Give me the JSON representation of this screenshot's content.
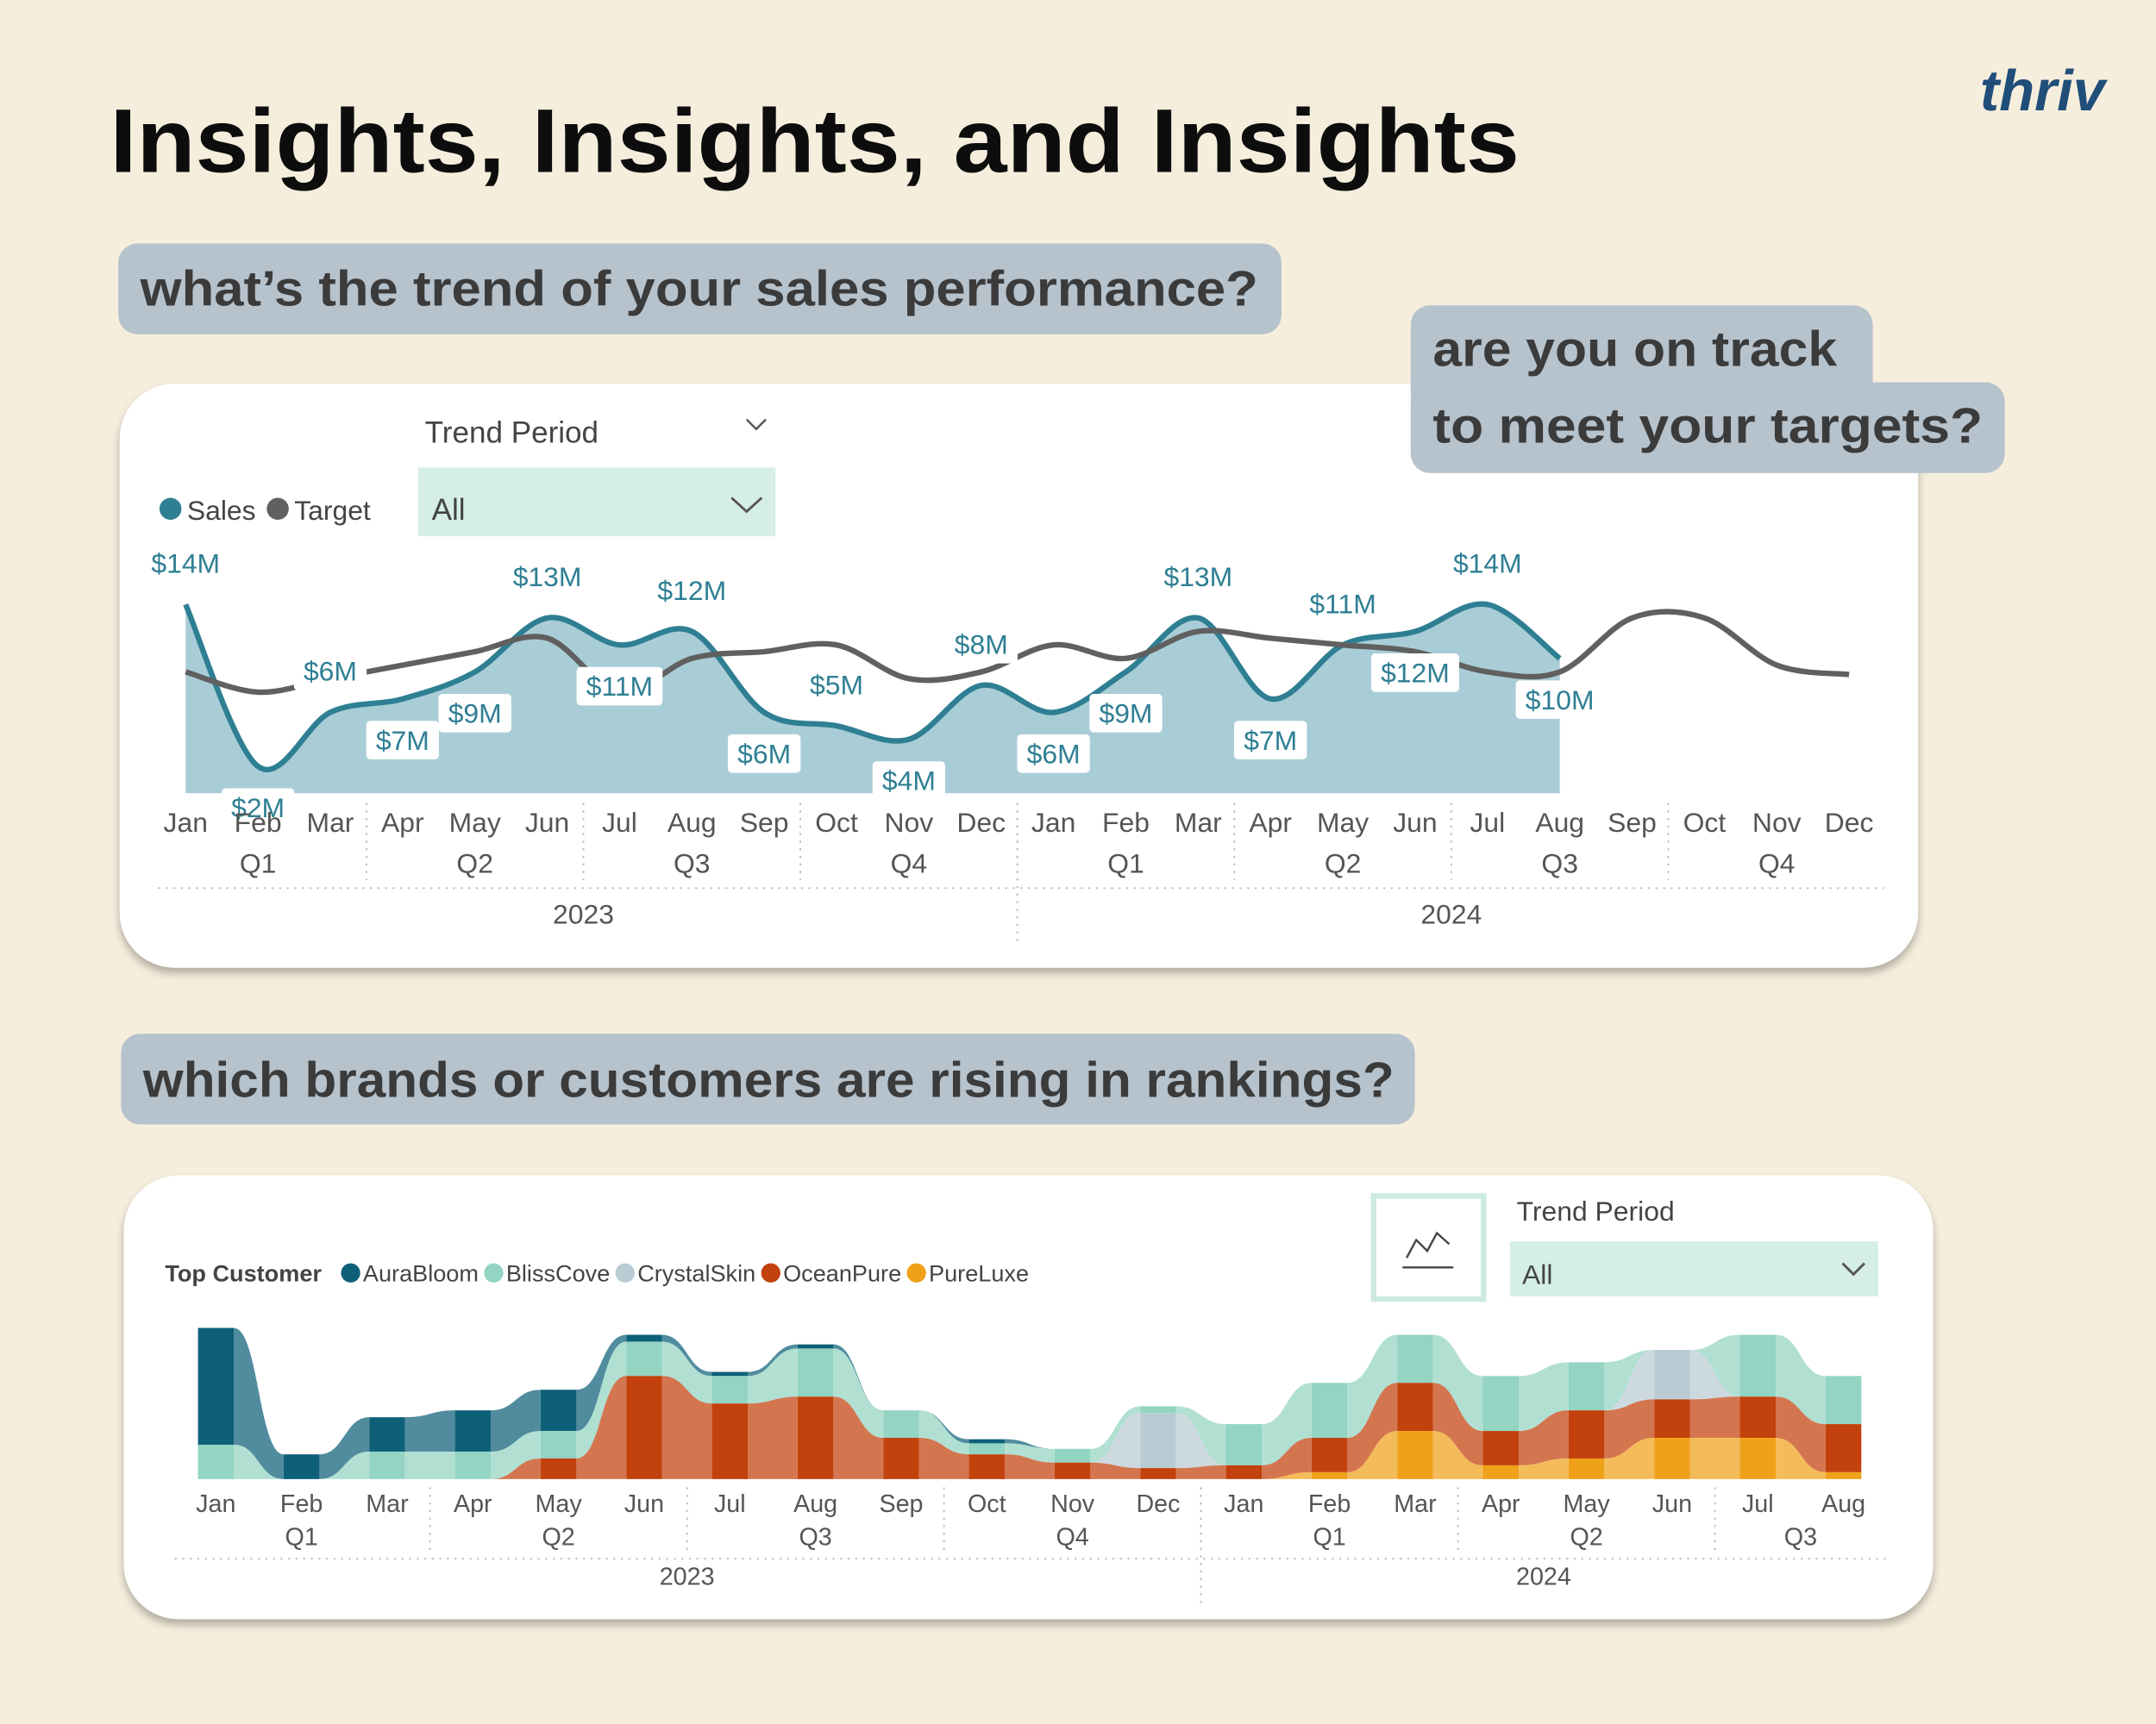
{
  "header": {
    "title": "Insights, Insights, and Insights",
    "logo": "thriv"
  },
  "questions": [
    [
      "what’s the trend of your sales performance?"
    ],
    [
      "are you on track",
      "to meet your targets?"
    ],
    [
      "which brands or customers are rising in rankings?"
    ]
  ],
  "chart_data": [
    {
      "type": "area",
      "filter": {
        "label": "Trend Period",
        "value": "All"
      },
      "categories": [
        "Jan",
        "Feb",
        "Mar",
        "Apr",
        "May",
        "Jun",
        "Jul",
        "Aug",
        "Sep",
        "Oct",
        "Nov",
        "Dec",
        "Jan",
        "Feb",
        "Mar",
        "Apr",
        "May",
        "Jun",
        "Jul",
        "Aug",
        "Sep",
        "Oct",
        "Nov",
        "Dec"
      ],
      "quarters": [
        "Q1",
        "Q2",
        "Q3",
        "Q4",
        "Q1",
        "Q2",
        "Q3",
        "Q4"
      ],
      "years": [
        "2023",
        "2024"
      ],
      "ylim": [
        0,
        16
      ],
      "series": [
        {
          "name": "Sales",
          "type": "area",
          "color": "#2f7f93",
          "fill": "#a9cdd6",
          "values": [
            14,
            2,
            6,
            7,
            9,
            13,
            11,
            12,
            6,
            5,
            4,
            8,
            6,
            9,
            13,
            7,
            11,
            12,
            14,
            10,
            null,
            null,
            null,
            null
          ],
          "value_labels": [
            "$14M",
            "$2M",
            "$6M",
            "$7M",
            "$9M",
            "$13M",
            "$11M",
            "$12M",
            "$6M",
            "$5M",
            "$4M",
            "$8M",
            "$6M",
            "$9M",
            "$13M",
            "$7M",
            "$11M",
            "$12M",
            "$14M",
            "$10M",
            null,
            null,
            null,
            null
          ]
        },
        {
          "name": "Target",
          "type": "line",
          "color": "#606060",
          "values": [
            9,
            7.5,
            8.5,
            9.5,
            10.5,
            11.5,
            7.5,
            10,
            10.5,
            11,
            8.5,
            9,
            11,
            10,
            12,
            11.5,
            11,
            10.5,
            9,
            9,
            13,
            13,
            9.5,
            8.8
          ]
        }
      ]
    },
    {
      "type": "ribbon",
      "legend_title": "Top Customer",
      "filter": {
        "label": "Trend Period",
        "value": "All"
      },
      "categories": [
        "Jan",
        "Feb",
        "Mar",
        "Apr",
        "May",
        "Jun",
        "Jul",
        "Aug",
        "Sep",
        "Oct",
        "Nov",
        "Dec",
        "Jan",
        "Feb",
        "Mar",
        "Apr",
        "May",
        "Jun",
        "Jul",
        "Aug"
      ],
      "quarters": [
        "Q1",
        "Q2",
        "Q3",
        "Q4",
        "Q1",
        "Q2",
        "Q3"
      ],
      "years": [
        "2023",
        "2024"
      ],
      "ylim": [
        0,
        120
      ],
      "series": [
        {
          "name": "AuraBloom",
          "color": "#0e6079",
          "values": [
            85,
            18,
            25,
            30,
            30,
            5,
            3,
            3,
            0,
            3,
            0,
            0,
            0,
            0,
            0,
            0,
            0,
            0,
            0,
            0
          ]
        },
        {
          "name": "BlissCove",
          "color": "#93d4c2",
          "values": [
            25,
            0,
            20,
            20,
            20,
            25,
            20,
            35,
            20,
            8,
            10,
            5,
            30,
            40,
            35,
            40,
            35,
            0,
            45,
            35
          ]
        },
        {
          "name": "CrystalSkin",
          "color": "#b9ccd4",
          "values": [
            0,
            0,
            0,
            0,
            0,
            0,
            0,
            0,
            0,
            0,
            0,
            40,
            0,
            0,
            0,
            0,
            0,
            36,
            0,
            0
          ]
        },
        {
          "name": "OceanPure",
          "color": "#c2410c",
          "values": [
            0,
            0,
            0,
            0,
            15,
            75,
            55,
            60,
            30,
            18,
            12,
            8,
            10,
            25,
            35,
            25,
            35,
            28,
            30,
            35
          ]
        },
        {
          "name": "PureLuxe",
          "color": "#f0a11a",
          "values": [
            0,
            0,
            0,
            0,
            0,
            0,
            0,
            0,
            0,
            0,
            0,
            0,
            0,
            5,
            35,
            10,
            15,
            30,
            30,
            5
          ]
        }
      ]
    }
  ]
}
